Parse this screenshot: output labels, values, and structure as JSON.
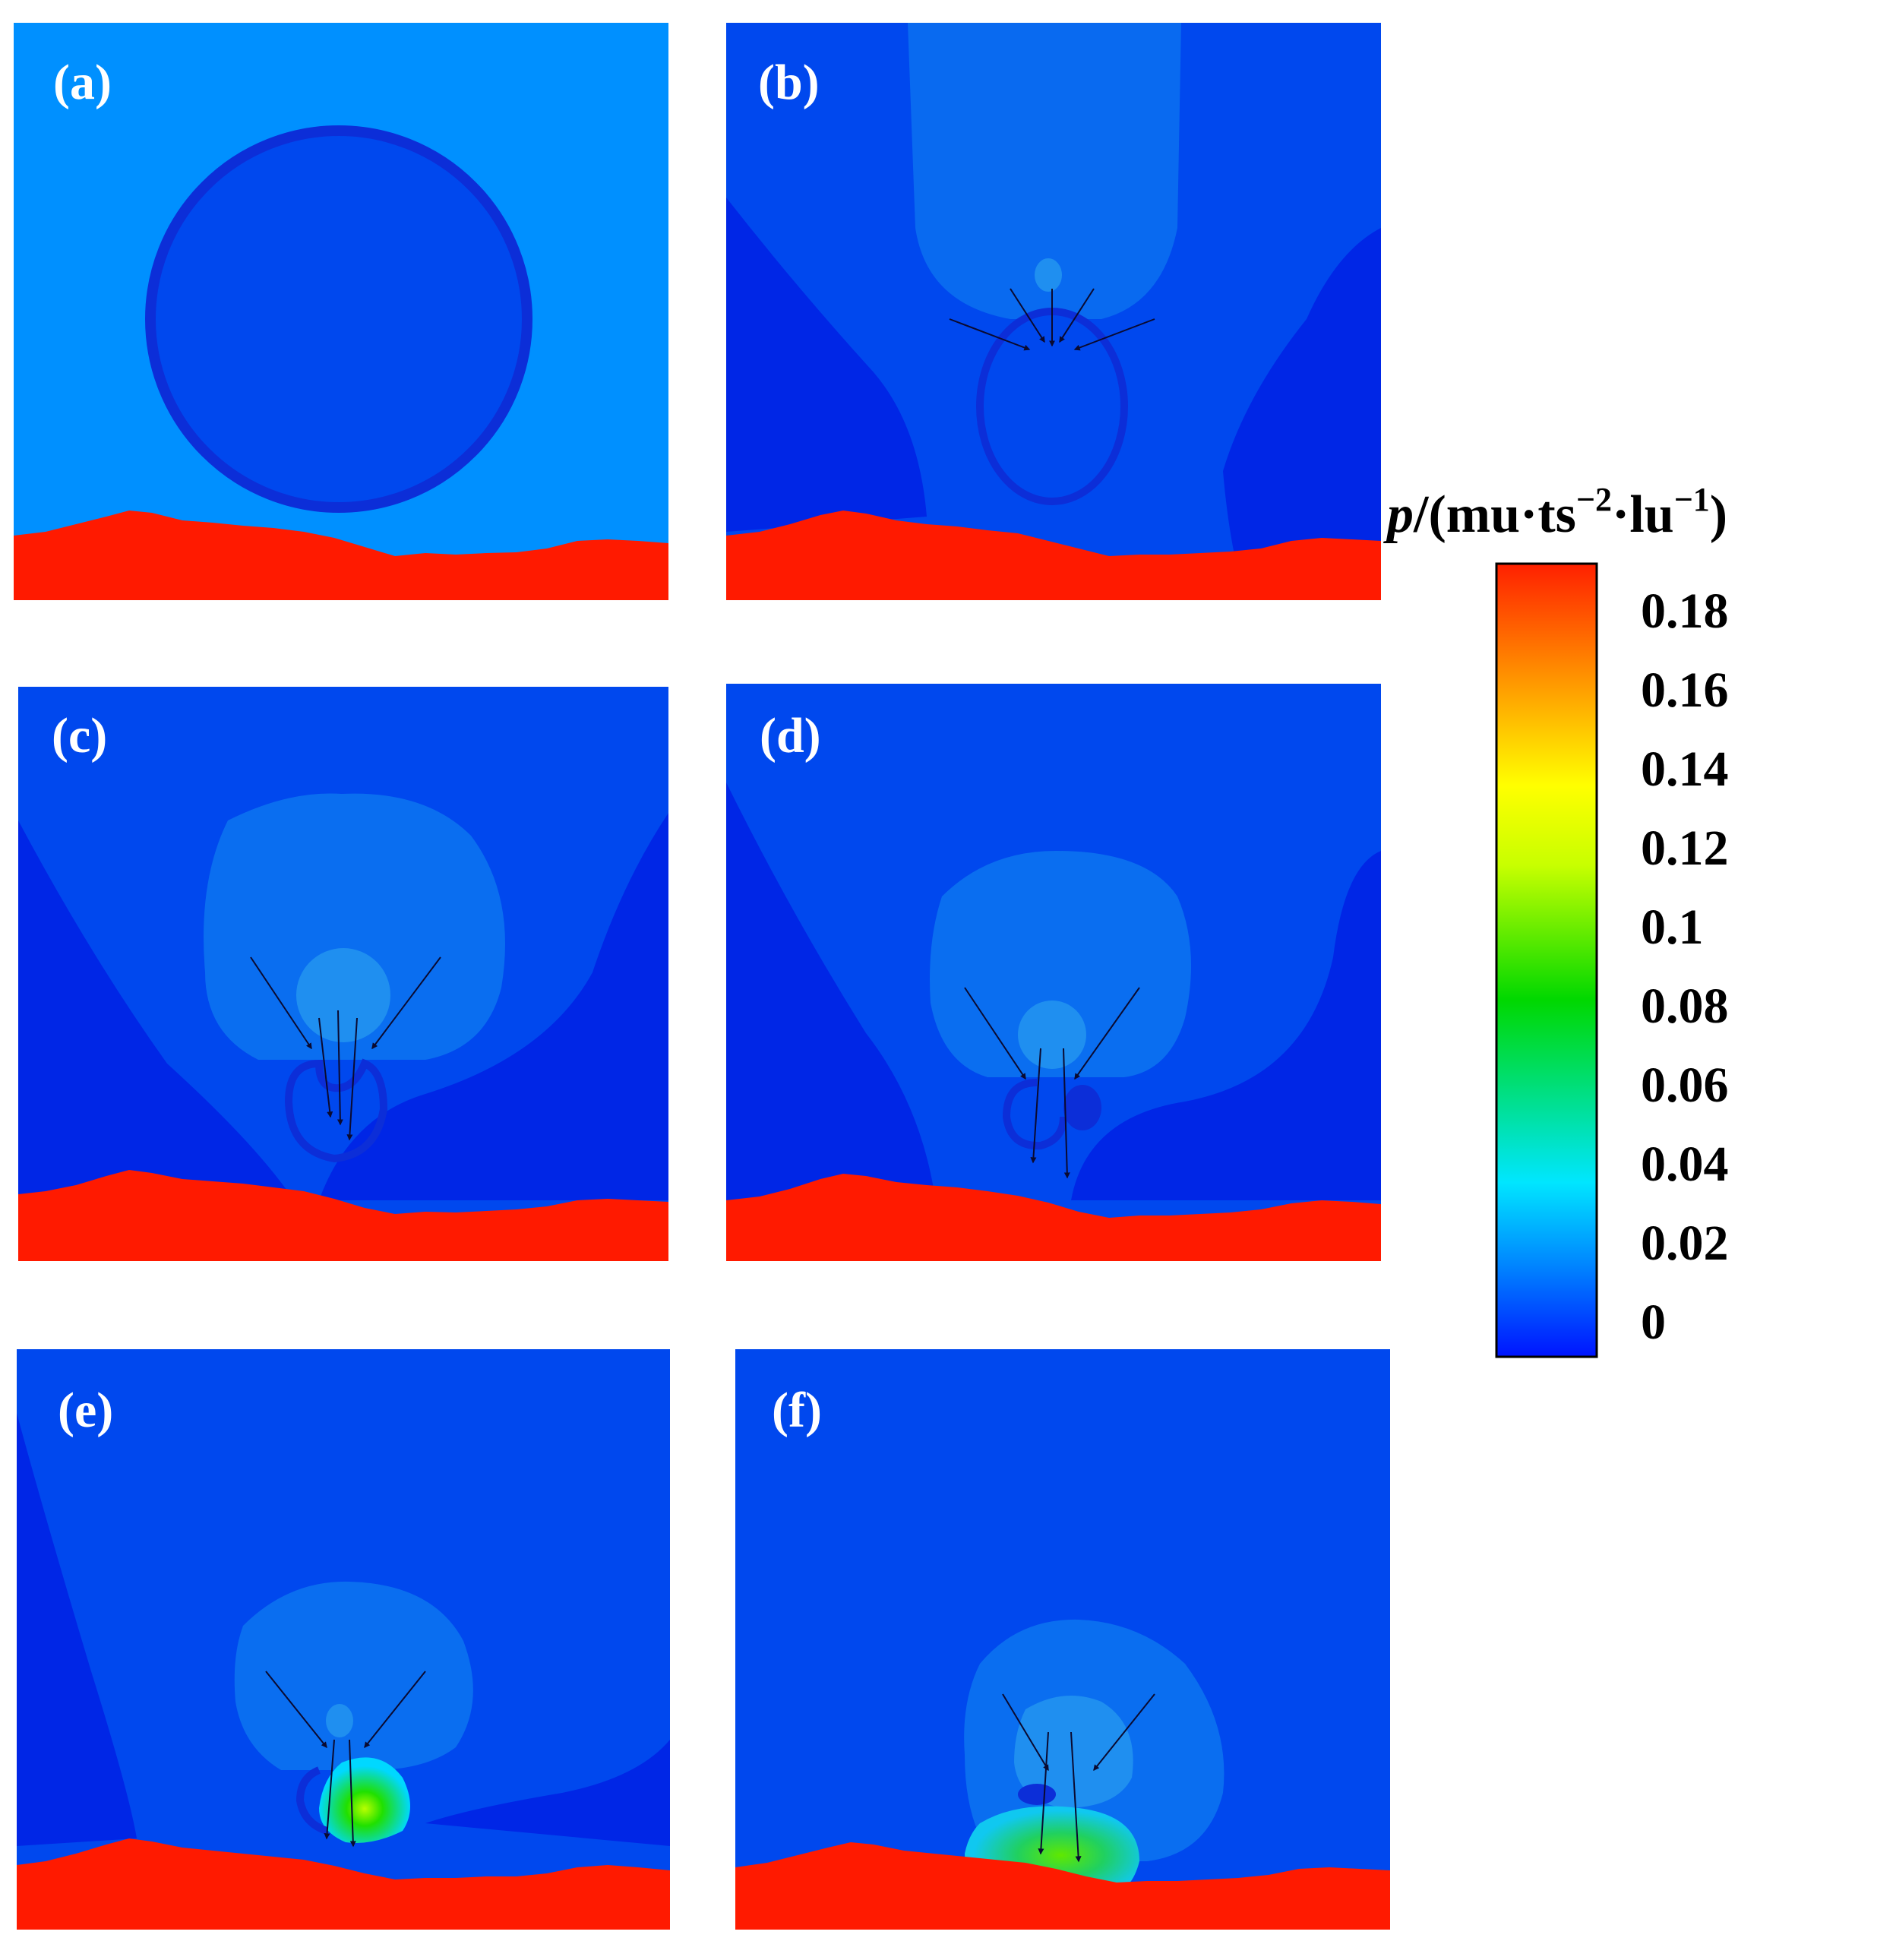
{
  "figure": {
    "panels": [
      {
        "id": "a",
        "label": "(a)"
      },
      {
        "id": "b",
        "label": "(b)"
      },
      {
        "id": "c",
        "label": "(c)"
      },
      {
        "id": "d",
        "label": "(d)"
      },
      {
        "id": "e",
        "label": "(e)"
      },
      {
        "id": "f",
        "label": "(f)"
      }
    ],
    "colorbar": {
      "title_var": "p",
      "title_rest": "/(mu·ts",
      "exp1": "−2",
      "mid": "·lu",
      "exp2": "−1",
      "close": ")",
      "ticks": [
        "0.18",
        "0.16",
        "0.14",
        "0.12",
        "0.1",
        "0.08",
        "0.06",
        "0.04",
        "0.02",
        "0"
      ]
    },
    "colors": {
      "wall": "#ff1a00",
      "background_a": "#0090ff",
      "background": "#0048ee",
      "deep": "#0026e6",
      "bubble_rim": "#0c2ed8",
      "mid_blue": "#0a6ef0",
      "light_blue": "#1f8ff0"
    }
  }
}
